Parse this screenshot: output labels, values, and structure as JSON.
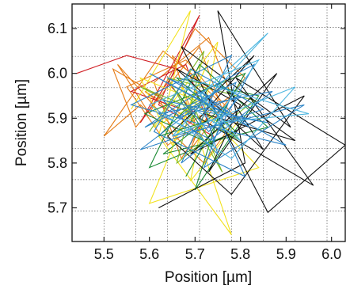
{
  "chart_data": {
    "type": "line",
    "title": "",
    "xlabel": "Position [µm]",
    "ylabel": "Position [µm]",
    "xlim": [
      5.43,
      6.03
    ],
    "ylim": [
      5.625,
      6.155
    ],
    "x_ticks": [
      {
        "value": 5.5,
        "label": "5.5"
      },
      {
        "value": 5.6,
        "label": "5.6"
      },
      {
        "value": 5.7,
        "label": "5.7"
      },
      {
        "value": 5.8,
        "label": "5.8"
      },
      {
        "value": 5.9,
        "label": "5.9"
      },
      {
        "value": 6.0,
        "label": "6.0"
      }
    ],
    "y_ticks": [
      {
        "value": 5.7,
        "label": "5.7"
      },
      {
        "value": 5.8,
        "label": "5.8"
      },
      {
        "value": 5.9,
        "label": "5.9"
      },
      {
        "value": 6.0,
        "label": "6.0"
      },
      {
        "value": 6.1,
        "label": "6.1"
      }
    ],
    "x_grid": [
      5.5,
      5.57,
      5.64,
      5.71,
      5.78,
      5.85,
      5.92,
      5.99
    ],
    "y_grid": [
      5.693,
      5.763,
      5.833,
      5.903,
      5.968,
      6.038,
      6.103
    ],
    "grid": true,
    "legend": "none",
    "series": [
      {
        "color": "#e67c16",
        "x": [
          5.62,
          5.52,
          5.57,
          5.71,
          5.76,
          5.64,
          5.55,
          5.68,
          5.79,
          5.72,
          5.58,
          5.5,
          5.63,
          5.74,
          5.69,
          5.81,
          5.7,
          5.6,
          5.53,
          5.66,
          5.78,
          5.73,
          5.61,
          5.67,
          5.75,
          5.65,
          5.7,
          5.59,
          5.64
        ],
        "y": [
          5.95,
          6.01,
          5.88,
          6.06,
          5.92,
          5.84,
          5.97,
          6.03,
          5.9,
          5.8,
          5.93,
          5.86,
          6.05,
          5.96,
          5.83,
          5.99,
          6.1,
          5.91,
          6.02,
          5.87,
          5.95,
          6.08,
          5.98,
          5.81,
          5.94,
          6.04,
          5.89,
          5.96,
          5.92
        ]
      },
      {
        "color": "#d11f24",
        "x": [
          5.44,
          5.55,
          5.66,
          5.58,
          5.71,
          5.62,
          5.74,
          5.68,
          5.56,
          5.7,
          5.64
        ],
        "y": [
          6.0,
          6.04,
          6.01,
          5.89,
          6.13,
          5.93,
          5.86,
          6.02,
          5.96,
          5.91,
          5.98
        ]
      },
      {
        "color": "#f2e21f",
        "x": [
          5.56,
          5.69,
          5.62,
          5.78,
          5.67,
          5.84,
          5.6,
          5.73,
          5.65,
          5.58,
          5.8,
          5.69,
          5.75,
          5.61,
          5.72
        ],
        "y": [
          5.92,
          6.14,
          5.86,
          5.64,
          5.97,
          5.79,
          5.71,
          6.03,
          5.84,
          5.99,
          5.9,
          5.76,
          6.07,
          5.88,
          5.94
        ]
      },
      {
        "color": "#1a8a33",
        "x": [
          5.66,
          5.74,
          5.59,
          5.81,
          5.68,
          5.77,
          5.63,
          5.86,
          5.71,
          5.6,
          5.79,
          5.66,
          5.84,
          5.7,
          5.75,
          5.62,
          5.73,
          5.69
        ],
        "y": [
          5.96,
          5.84,
          5.91,
          6.0,
          5.77,
          5.93,
          5.82,
          5.88,
          6.02,
          5.79,
          5.87,
          5.99,
          5.95,
          5.74,
          5.9,
          5.86,
          5.97,
          5.89
        ]
      },
      {
        "color": "#7ab828",
        "x": [
          5.6,
          5.72,
          5.66,
          5.83,
          5.64,
          5.76,
          5.7,
          5.58,
          5.8,
          5.68
        ],
        "y": [
          5.87,
          6.05,
          5.8,
          5.94,
          5.99,
          5.78,
          5.92,
          5.97,
          5.85,
          5.95
        ]
      },
      {
        "color": "#111111",
        "x": [
          5.62,
          5.81,
          5.75,
          5.91,
          5.67,
          5.86,
          6.03,
          5.79,
          5.96,
          5.71,
          5.83,
          5.64,
          5.78,
          5.94,
          5.69,
          5.88,
          5.73,
          5.8,
          5.66,
          5.85,
          5.77,
          5.92,
          5.72
        ],
        "y": [
          5.7,
          5.8,
          6.14,
          5.88,
          6.06,
          5.69,
          5.84,
          5.99,
          5.75,
          5.9,
          6.04,
          5.86,
          5.73,
          5.95,
          5.82,
          6.0,
          5.78,
          5.93,
          6.01,
          5.83,
          5.96,
          5.85,
          5.91
        ]
      },
      {
        "color": "#2b83c6",
        "x": [
          5.66,
          5.76,
          5.58,
          5.85,
          5.69,
          5.61,
          5.81,
          5.73,
          5.64,
          5.9,
          5.7,
          5.56,
          5.78,
          5.67,
          5.87,
          5.62,
          5.74,
          5.83,
          5.68,
          5.59,
          5.79,
          5.72,
          5.94,
          5.65,
          5.77,
          5.6,
          5.82,
          5.71,
          5.75,
          5.63,
          5.86,
          5.69,
          5.73,
          5.8,
          5.66
        ],
        "y": [
          5.9,
          5.97,
          5.83,
          5.92,
          6.01,
          5.87,
          5.77,
          5.95,
          5.99,
          5.84,
          5.89,
          5.93,
          6.04,
          5.8,
          5.96,
          5.91,
          5.85,
          6.02,
          5.94,
          5.88,
          5.98,
          5.79,
          5.93,
          5.86,
          5.91,
          6.0,
          5.88,
          5.96,
          5.82,
          5.94,
          5.89,
          5.92,
          5.87,
          5.95,
          5.9
        ]
      },
      {
        "color": "#4fb7e0",
        "x": [
          5.71,
          5.86,
          5.65,
          5.92,
          5.78,
          5.6,
          5.84,
          5.74,
          5.95,
          5.68,
          5.8,
          5.7
        ],
        "y": [
          5.95,
          6.09,
          5.86,
          5.97,
          5.81,
          5.93,
          6.03,
          5.89,
          5.91,
          5.99,
          5.85,
          5.92
        ]
      }
    ]
  }
}
